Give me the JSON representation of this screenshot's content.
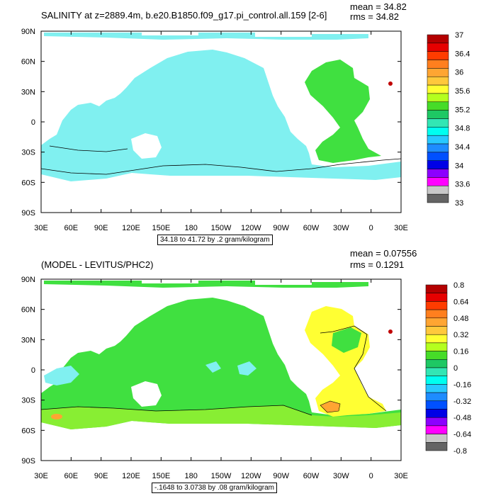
{
  "panels": [
    {
      "title": "SALINITY at z=2889.4m, b.e20.B1850.f09_g17.pi_control.all.159 [2-6]",
      "mean_text": "mean = 34.82",
      "rms_text": "rms = 34.82",
      "range_text": "34.18 to 41.72 by .2 gram/kilogram",
      "colorbar": {
        "labels": [
          "37",
          "36.4",
          "36",
          "35.6",
          "35.2",
          "34.8",
          "34.4",
          "34",
          "33.6",
          "33"
        ],
        "colors": [
          "#b40000",
          "#e60000",
          "#ff3c00",
          "#ff7f1e",
          "#ffa532",
          "#ffc83c",
          "#ffff32",
          "#b4ff1e",
          "#46dc28",
          "#1ec864",
          "#32e6b4",
          "#00fff0",
          "#28c8ff",
          "#1e8cff",
          "#0050ff",
          "#0000e6",
          "#8c00ff",
          "#ff00ff",
          "#c8c8c8",
          "#646464"
        ]
      }
    },
    {
      "title": "(MODEL - LEVITUS/PHC2)",
      "mean_text": "mean = 0.07556",
      "rms_text": "rms = 0.1291",
      "range_text": "-.1648 to 3.0738 by .08 gram/kilogram",
      "colorbar": {
        "labels": [
          "0.8",
          "0.64",
          "0.48",
          "0.32",
          "0.16",
          "0",
          "-0.16",
          "-0.32",
          "-0.48",
          "-0.64",
          "-0.8"
        ],
        "colors": [
          "#b40000",
          "#e60000",
          "#ff3c00",
          "#ff7f1e",
          "#ffa532",
          "#ffc83c",
          "#ffff32",
          "#b4ff1e",
          "#46dc28",
          "#1ec864",
          "#32e6b4",
          "#00fff0",
          "#28c8ff",
          "#1e8cff",
          "#0050ff",
          "#0000e6",
          "#8c00ff",
          "#ff00ff",
          "#c8c8c8",
          "#646464"
        ]
      }
    }
  ],
  "axes": {
    "x_ticks": [
      "30E",
      "60E",
      "90E",
      "120E",
      "150E",
      "180",
      "150W",
      "120W",
      "90W",
      "60W",
      "30W",
      "0",
      "30E"
    ],
    "y_ticks": [
      "90N",
      "60N",
      "30N",
      "0",
      "30S",
      "60S",
      "90S"
    ]
  },
  "colors": {
    "ocean_cyan": "#80f0f0",
    "ocean_green": "#40e040",
    "ocean_yellow": "#ffff33",
    "ocean_lightgreen": "#88ee33",
    "hot_red": "#c00000"
  }
}
